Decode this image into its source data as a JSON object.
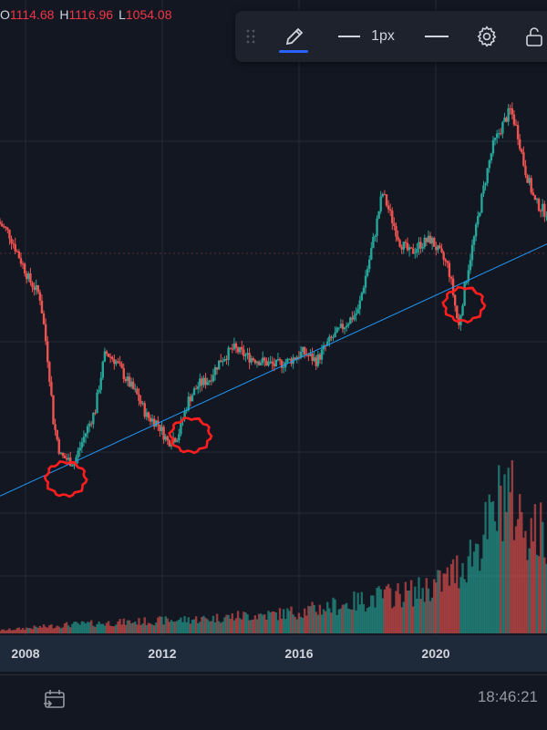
{
  "ohlc": {
    "o_label": "O",
    "o_value": "1114.68",
    "h_label": "H",
    "h_value": "1116.96",
    "l_label": "L",
    "l_value": "1054.08"
  },
  "toolbar": {
    "line_width_label": "1px",
    "icons": [
      "drag-handle-icon",
      "pencil-icon",
      "line-width-icon",
      "line-style-icon",
      "gear-icon",
      "lock-icon"
    ],
    "active_color": "#2962ff"
  },
  "status": {
    "time": "18:46:21"
  },
  "colors": {
    "up": "#26a69a",
    "down": "#ef5350",
    "trendline": "#2196f3",
    "annotation": "#ff1e1e",
    "background": "#131722"
  },
  "chart_data": {
    "type": "candlestick",
    "x_tick_labels": [
      "2008",
      "2012",
      "2016",
      "2020"
    ],
    "x_range": [
      2007.0,
      2022.8
    ],
    "price_line": [
      [
        2007.0,
        9.0
      ],
      [
        2007.3,
        8.5
      ],
      [
        2007.6,
        7.5
      ],
      [
        2007.9,
        6.6
      ],
      [
        2008.2,
        6.1
      ],
      [
        2008.6,
        3.1
      ],
      [
        2008.8,
        2.6
      ],
      [
        2009.2,
        2.5
      ],
      [
        2009.5,
        2.9
      ],
      [
        2009.8,
        3.3
      ],
      [
        2010.1,
        4.5
      ],
      [
        2010.4,
        4.3
      ],
      [
        2010.7,
        3.9
      ],
      [
        2011.0,
        3.6
      ],
      [
        2011.3,
        3.2
      ],
      [
        2011.6,
        3.1
      ],
      [
        2011.9,
        2.8
      ],
      [
        2012.2,
        2.9
      ],
      [
        2012.5,
        3.5
      ],
      [
        2012.8,
        3.8
      ],
      [
        2013.1,
        3.9
      ],
      [
        2013.4,
        4.3
      ],
      [
        2013.8,
        4.6
      ],
      [
        2014.2,
        4.4
      ],
      [
        2014.6,
        4.3
      ],
      [
        2015.0,
        4.2
      ],
      [
        2015.4,
        4.3
      ],
      [
        2015.8,
        4.5
      ],
      [
        2016.2,
        4.3
      ],
      [
        2016.5,
        4.7
      ],
      [
        2016.8,
        5.0
      ],
      [
        2017.1,
        5.3
      ],
      [
        2017.4,
        5.6
      ],
      [
        2017.7,
        7.2
      ],
      [
        2017.9,
        8.6
      ],
      [
        2018.1,
        10.5
      ],
      [
        2018.4,
        9.0
      ],
      [
        2018.6,
        8.1
      ],
      [
        2018.9,
        7.6
      ],
      [
        2019.2,
        8.0
      ],
      [
        2019.5,
        8.2
      ],
      [
        2019.8,
        7.5
      ],
      [
        2020.0,
        7.1
      ],
      [
        2020.3,
        5.1
      ],
      [
        2020.5,
        6.5
      ],
      [
        2020.8,
        8.6
      ],
      [
        2021.0,
        10.5
      ],
      [
        2021.3,
        13.5
      ],
      [
        2021.6,
        15.2
      ],
      [
        2021.8,
        16.3
      ],
      [
        2022.0,
        14.5
      ],
      [
        2022.2,
        12.0
      ],
      [
        2022.5,
        10.0
      ],
      [
        2022.8,
        9.5
      ]
    ],
    "volume_line": [
      [
        2007.0,
        0.02
      ],
      [
        2008.0,
        0.04
      ],
      [
        2009.0,
        0.06
      ],
      [
        2010.0,
        0.07
      ],
      [
        2011.0,
        0.08
      ],
      [
        2012.0,
        0.09
      ],
      [
        2013.0,
        0.1
      ],
      [
        2014.0,
        0.12
      ],
      [
        2015.0,
        0.13
      ],
      [
        2016.0,
        0.16
      ],
      [
        2017.0,
        0.2
      ],
      [
        2018.0,
        0.25
      ],
      [
        2019.0,
        0.28
      ],
      [
        2019.8,
        0.35
      ],
      [
        2020.3,
        0.45
      ],
      [
        2020.8,
        0.6
      ],
      [
        2021.2,
        0.75
      ],
      [
        2021.6,
        1.0
      ],
      [
        2022.0,
        0.8
      ],
      [
        2022.4,
        0.7
      ],
      [
        2022.8,
        0.65
      ]
    ],
    "volume_range": [
      0,
      1
    ],
    "y_scale": "log",
    "trendline": [
      [
        2007.0,
        2.1
      ],
      [
        2022.8,
        8.0
      ]
    ],
    "annotations": [
      {
        "type": "circle",
        "x": 2008.9,
        "y": 2.3
      },
      {
        "type": "circle",
        "x": 2012.5,
        "y": 2.9
      },
      {
        "type": "circle",
        "x": 2020.4,
        "y": 5.8
      }
    ]
  }
}
